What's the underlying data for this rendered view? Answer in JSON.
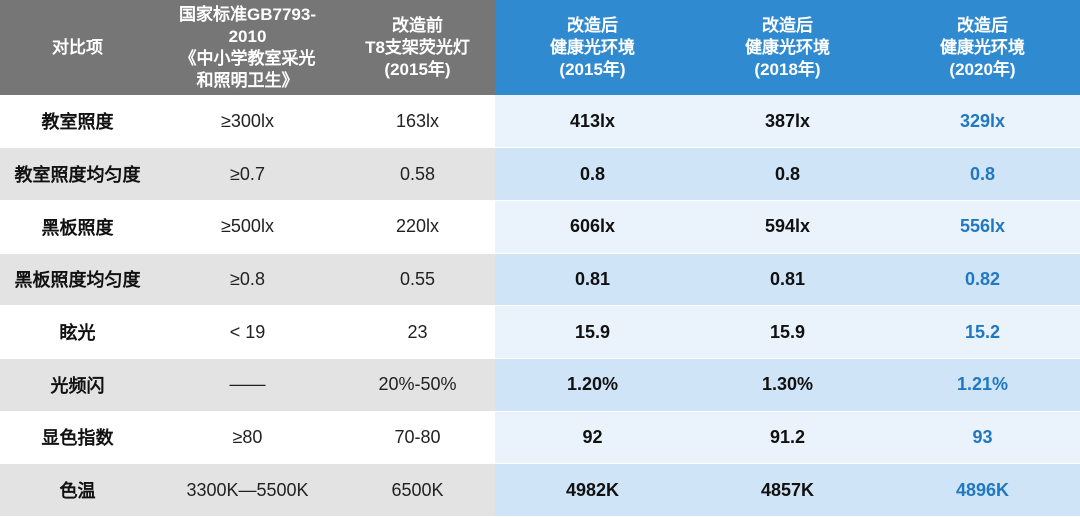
{
  "headers": [
    {
      "lines": [
        "对比项"
      ]
    },
    {
      "lines": [
        "国家标准GB7793-",
        "2010",
        "《中小学教室采光",
        "和照明卫生》"
      ]
    },
    {
      "lines": [
        "改造前",
        "T8支架荧光灯",
        "(2015年)"
      ]
    },
    {
      "lines": [
        "改造后",
        "健康光环境",
        "(2015年)"
      ]
    },
    {
      "lines": [
        "改造后",
        "健康光环境",
        "(2018年)"
      ]
    },
    {
      "lines": [
        "改造后",
        "健康光环境",
        "(2020年)"
      ]
    }
  ],
  "rows": [
    {
      "label": "教室照度",
      "standard": "≥300lx",
      "before": "163lx",
      "after_2015": "413lx",
      "after_2018": "387lx",
      "after_2020": "329lx"
    },
    {
      "label": "教室照度均匀度",
      "standard": "≥0.7",
      "before": "0.58",
      "after_2015": "0.8",
      "after_2018": "0.8",
      "after_2020": "0.8"
    },
    {
      "label": "黑板照度",
      "standard": "≥500lx",
      "before": "220lx",
      "after_2015": "606lx",
      "after_2018": "594lx",
      "after_2020": "556lx"
    },
    {
      "label": "黑板照度均匀度",
      "standard": "≥0.8",
      "before": "0.55",
      "after_2015": "0.81",
      "after_2018": "0.81",
      "after_2020": "0.82"
    },
    {
      "label": "眩光",
      "standard": "< 19",
      "before": "23",
      "after_2015": "15.9",
      "after_2018": "15.9",
      "after_2020": "15.2"
    },
    {
      "label": "光频闪",
      "standard": "——",
      "before": "20%-50%",
      "after_2015": "1.20%",
      "after_2018": "1.30%",
      "after_2020": "1.21%"
    },
    {
      "label": "显色指数",
      "standard": "≥80",
      "before": "70-80",
      "after_2015": "92",
      "after_2018": "91.2",
      "after_2020": "93"
    },
    {
      "label": "色温",
      "standard": "3300K—5500K",
      "before": "6500K",
      "after_2015": "4982K",
      "after_2018": "4857K",
      "after_2020": "4896K"
    }
  ],
  "colors": {
    "header_gray": "#767676",
    "header_blue": "#2f8ad0",
    "highlight_text": "#1f78c1"
  }
}
